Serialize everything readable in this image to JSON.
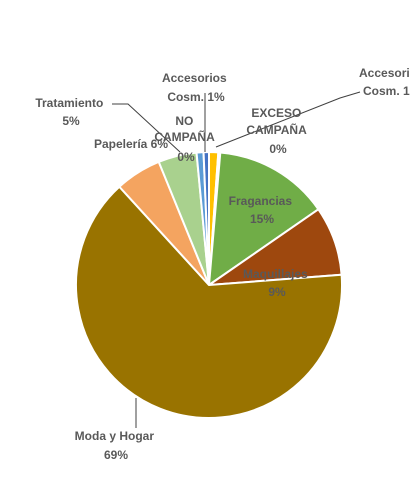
{
  "chart_data": {
    "type": "pie",
    "title": "",
    "slices": [
      {
        "label": "Accesorios Cosm. 1%",
        "value": 1,
        "color": "#FFC000"
      },
      {
        "label": "EXCESO CAMPAÑA 0%",
        "value": 0,
        "color": "#A5A5A5"
      },
      {
        "label": "Fragancias 15%",
        "value": 15,
        "color": "#70AD47"
      },
      {
        "label": "Maquillajes 9%",
        "value": 9,
        "color": "#9E480E"
      },
      {
        "label": "Moda y Hogar 69%",
        "value": 69,
        "color": "#997300"
      },
      {
        "label": "Papelería 6%",
        "value": 6,
        "color": "#F4A460"
      },
      {
        "label": "Tratamiento 5%",
        "value": 5,
        "color": "#A9D18E"
      },
      {
        "label": "NO CAMPAÑA 0%",
        "value": 0,
        "color": "#5B9BD5"
      },
      {
        "label": "Accesorios Cosm. 1%",
        "value": 1,
        "color": "#4472C4"
      }
    ],
    "labels": {
      "accesorios_cosm_a_line1": "Accesorios",
      "accesorios_cosm_a_line2": "Cosm. 1%",
      "accesorios_cosm_b_line1": "Accesori",
      "accesorios_cosm_b_line2": "Cosm. 1",
      "tratamiento_line1": "Tratamiento",
      "tratamiento_line2": "5%",
      "papeleria": "Papelería 6%",
      "no_campana_line1": "NO",
      "no_campana_line2": "CAMPAÑA",
      "no_campana_line3": "0%",
      "exceso_line1": "EXCESO",
      "exceso_line2": "CAMPAÑA",
      "exceso_line3": "0%",
      "fragancias_line1": "Fragancias",
      "fragancias_line2": "15%",
      "maquillajes_line1": "Maquillajes",
      "maquillajes_line2": "9%",
      "moda_line1": "Moda y Hogar",
      "moda_line2": "69%"
    }
  }
}
